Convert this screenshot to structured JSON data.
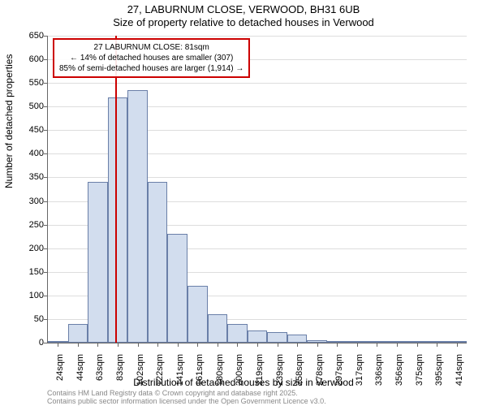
{
  "title": "27, LABURNUM CLOSE, VERWOOD, BH31 6UB",
  "subtitle": "Size of property relative to detached houses in Verwood",
  "chart": {
    "type": "histogram",
    "ylabel": "Number of detached properties",
    "xlabel": "Distribution of detached houses by size in Verwood",
    "ylim": [
      0,
      650
    ],
    "ytick_step": 50,
    "bar_fill": "#d2ddee",
    "bar_stroke": "#6a7fa8",
    "grid_color": "#dddddd",
    "background": "#ffffff",
    "marker_color": "#cc0000",
    "categories": [
      "24sqm",
      "44sqm",
      "63sqm",
      "83sqm",
      "102sqm",
      "122sqm",
      "141sqm",
      "161sqm",
      "180sqm",
      "200sqm",
      "219sqm",
      "239sqm",
      "258sqm",
      "278sqm",
      "297sqm",
      "317sqm",
      "336sqm",
      "356sqm",
      "375sqm",
      "395sqm",
      "414sqm"
    ],
    "values": [
      1,
      40,
      340,
      520,
      535,
      340,
      230,
      120,
      60,
      40,
      25,
      22,
      18,
      5,
      2,
      1,
      1,
      1,
      1,
      1,
      1
    ],
    "marker_position_sqm": 81,
    "annotation": {
      "line1": "27 LABURNUM CLOSE: 81sqm",
      "line2": "← 14% of detached houses are smaller (307)",
      "line3": "85% of semi-detached houses are larger (1,914) →"
    }
  },
  "footer": {
    "line1": "Contains HM Land Registry data © Crown copyright and database right 2025.",
    "line2": "Contains public sector information licensed under the Open Government Licence v3.0."
  }
}
